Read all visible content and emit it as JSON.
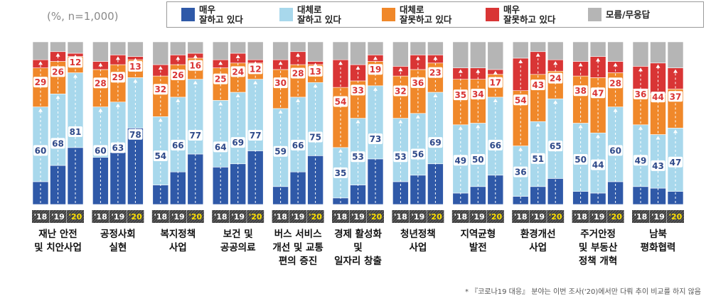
{
  "chart_data": {
    "type": "bar",
    "unit_note": "(%, n=1,000)",
    "footnote": "* 『코로나19 대응』 분야는 이번 조사('20)에서만 다뤄 추이 비교를 하지 않음",
    "years": [
      "'18",
      "'19",
      "'20"
    ],
    "legend": [
      {
        "label": "매우\n잘하고 있다",
        "color": "#2f59a8"
      },
      {
        "label": "대체로\n잘하고 있다",
        "color": "#a8d8ec"
      },
      {
        "label": "대체로\n잘못하고 있다",
        "color": "#f0882a"
      },
      {
        "label": "매우\n잘못하고 있다",
        "color": "#d93535"
      },
      {
        "label": "모름/무응답",
        "color": "#b5b5b5"
      }
    ],
    "ylim": [
      0,
      100
    ],
    "categories": [
      {
        "name": "재난 안전\n및 치안사업",
        "positive": [
          60,
          68,
          81
        ],
        "negative": [
          29,
          26,
          12
        ],
        "strong_pos": [
          14,
          24,
          35
        ],
        "strong_neg": [
          5,
          6,
          2
        ]
      },
      {
        "name": "공정사회\n실현",
        "positive": [
          60,
          63,
          78
        ],
        "negative": [
          28,
          29,
          13
        ],
        "strong_pos": [
          29,
          32,
          47
        ],
        "strong_neg": [
          5,
          6,
          2
        ]
      },
      {
        "name": "복지정책\n사업",
        "positive": [
          54,
          66,
          77
        ],
        "negative": [
          32,
          26,
          16
        ],
        "strong_pos": [
          12,
          20,
          31
        ],
        "strong_neg": [
          7,
          6,
          3
        ]
      },
      {
        "name": "보건 및\n공공의료",
        "positive": [
          64,
          69,
          77
        ],
        "negative": [
          25,
          24,
          12
        ],
        "strong_pos": [
          23,
          25,
          33
        ],
        "strong_neg": [
          5,
          6,
          2
        ]
      },
      {
        "name": "버스 서비스\n개선 및 교통\n편의 증진",
        "positive": [
          59,
          66,
          75
        ],
        "negative": [
          30,
          28,
          13
        ],
        "strong_pos": [
          11,
          20,
          30
        ],
        "strong_neg": [
          6,
          8,
          2
        ]
      },
      {
        "name": "경제 활성화\n및\n일자리 창출",
        "positive": [
          35,
          53,
          73
        ],
        "negative": [
          54,
          33,
          19
        ],
        "strong_pos": [
          4,
          12,
          28
        ],
        "strong_neg": [
          17,
          10,
          4
        ]
      },
      {
        "name": "청년정책\n사업",
        "positive": [
          53,
          56,
          69
        ],
        "negative": [
          32,
          36,
          23
        ],
        "strong_pos": [
          14,
          18,
          25
        ],
        "strong_neg": [
          6,
          9,
          5
        ]
      },
      {
        "name": "지역균형\n발전",
        "positive": [
          49,
          50,
          66
        ],
        "negative": [
          35,
          34,
          17
        ],
        "strong_pos": [
          7,
          11,
          18
        ],
        "strong_neg": [
          7,
          7,
          3
        ]
      },
      {
        "name": "환경개선\n사업",
        "positive": [
          36,
          51,
          65
        ],
        "negative": [
          54,
          43,
          24
        ],
        "strong_pos": [
          5,
          11,
          16
        ],
        "strong_neg": [
          20,
          14,
          7
        ]
      },
      {
        "name": "주거안정\n및 부동산\n정책 개혁",
        "positive": [
          50,
          44,
          60
        ],
        "negative": [
          38,
          47,
          28
        ],
        "strong_pos": [
          8,
          7,
          14
        ],
        "strong_neg": [
          9,
          13,
          7
        ]
      },
      {
        "name": "남북\n평화협력",
        "positive": [
          49,
          43,
          47
        ],
        "negative": [
          36,
          44,
          37
        ],
        "strong_pos": [
          11,
          10,
          8
        ],
        "strong_neg": [
          14,
          19,
          13
        ]
      }
    ]
  }
}
